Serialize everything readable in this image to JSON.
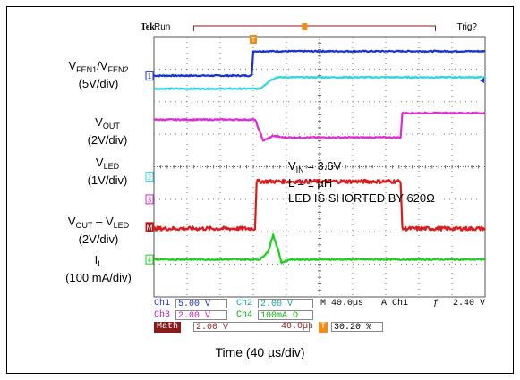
{
  "scope": {
    "brand": "Tek",
    "mode": "Run",
    "trigger_status": "Trig?"
  },
  "labels": {
    "fen_line1": "V",
    "fen_sub1": "FEN1",
    "fen_slash": "/V",
    "fen_sub2": "FEN2",
    "fen_scale": "(5V/div)",
    "vout_main": "V",
    "vout_sub": "OUT",
    "vout_scale": "(2V/div)",
    "vled_main": "V",
    "vled_sub": "LED",
    "vled_scale": "(1V/div)",
    "diff_a": "V",
    "diff_a_sub": "OUT",
    "diff_mid": " – V",
    "diff_b_sub": "LED",
    "diff_scale": "(2V/div)",
    "il_main": "I",
    "il_sub": "L",
    "il_scale": "(100 mA/div)"
  },
  "annotations": {
    "vin_main": "V",
    "vin_sub": "IN",
    "vin_value": " = 3.6V",
    "inductance": "L = 1 µH",
    "shorted": "LED IS SHORTED BY 620Ω"
  },
  "readout": {
    "ch1_label": "Ch1",
    "ch1_value": "5.00 V",
    "ch2_label": "Ch2",
    "ch2_value": "2.00 V",
    "timebase": "M 40.0µs",
    "trig_source": "A  Ch1",
    "trig_slope": "ƒ",
    "trig_level": "2.40 V",
    "ch3_label": "Ch3",
    "ch3_value": "2.00 V",
    "ch4_label": "Ch4",
    "ch4_value": "100mA Ω",
    "math_label": "Math",
    "math_value": "2.00 V",
    "math_time": "40.0µs",
    "trig_pos_marker": "T",
    "trig_position": "30.20 %"
  },
  "channel_markers": [
    "1",
    "2",
    "3",
    "M",
    "4"
  ],
  "x_axis_label": "Time (40 µs/div)",
  "colors": {
    "ch1": "#1a33cc",
    "ch2": "#33d6e0",
    "ch3": "#e02ad6",
    "math": "#e01a1a",
    "ch4": "#19d219",
    "trigger": "#f08c1a",
    "readout_math_bg": "#8b1a1a"
  },
  "chart_data": {
    "type": "line",
    "title": "",
    "xlabel": "Time (40 µs/div)",
    "x_unit": "div",
    "xlim": [
      0,
      10
    ],
    "ylim": [
      -4,
      4
    ],
    "grid": true,
    "trigger_position_div": 3.0,
    "series": [
      {
        "name": "VFEN1/VFEN2",
        "color": "ch1",
        "x": [
          0,
          2.95,
          3.0,
          10
        ],
        "y": [
          2.8,
          2.8,
          3.55,
          3.55
        ]
      },
      {
        "name": "VFEN1/VFEN2",
        "color": "ch2",
        "x": [
          0,
          3.2,
          3.5,
          3.7,
          10
        ],
        "y": [
          2.4,
          2.4,
          2.65,
          2.75,
          2.75
        ]
      },
      {
        "name": "VOUT",
        "color": "ch3",
        "x": [
          0,
          3.05,
          3.3,
          3.6,
          3.9,
          7.45,
          7.5,
          10
        ],
        "y": [
          1.45,
          1.45,
          0.8,
          0.95,
          0.9,
          0.9,
          1.65,
          1.65
        ]
      },
      {
        "name": "VOUT - VLED",
        "color": "math",
        "x": [
          0,
          3.05,
          3.1,
          7.45,
          7.5,
          10
        ],
        "y": [
          -1.9,
          -1.9,
          -0.45,
          -0.45,
          -1.9,
          -1.9
        ]
      },
      {
        "name": "IL",
        "color": "ch4",
        "x": [
          0,
          3.2,
          3.45,
          3.6,
          3.75,
          3.85,
          4.1,
          10
        ],
        "y": [
          -2.85,
          -2.85,
          -2.6,
          -2.1,
          -2.55,
          -2.95,
          -2.85,
          -2.85
        ]
      }
    ]
  }
}
